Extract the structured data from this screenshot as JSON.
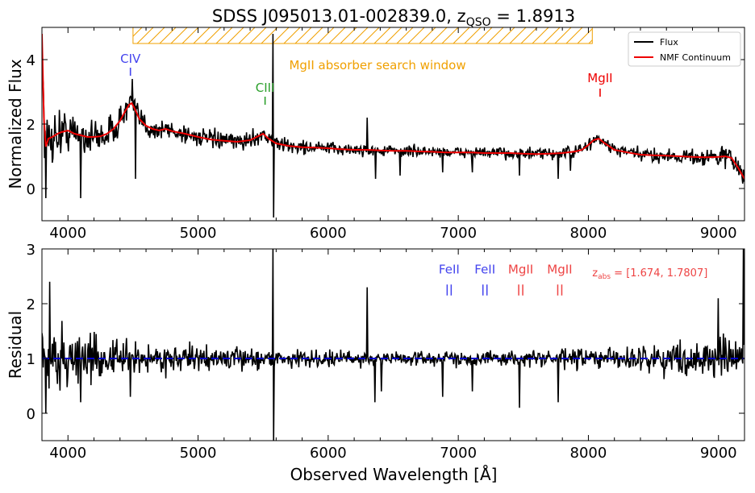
{
  "title": {
    "prefix": "SDSS J095013.01-002839.0,",
    "z_symbol": "z",
    "z_subscript": "QSO",
    "z_value": " = 1.8913"
  },
  "colors": {
    "flux": "#000000",
    "continuum": "#ee0000",
    "window": "#f0a000",
    "civ": "#4444ee",
    "ciii": "#2ca02c",
    "mgii_emission": "#ee0000",
    "feii": "#4444ee",
    "mgii_abs": "#ee4444",
    "unity": "#0000cc"
  },
  "chart_data": [
    {
      "type": "line",
      "title": "",
      "xlabel": "",
      "ylabel": "Normalized Flux",
      "xlim": [
        3800,
        9200
      ],
      "ylim": [
        -1,
        5
      ],
      "xticks": [
        4000,
        5000,
        6000,
        7000,
        8000,
        9000
      ],
      "yticks": [
        0,
        2,
        4
      ],
      "grid": false,
      "legend": {
        "placement": "top-right",
        "entries": [
          "Flux",
          "NMF Continuum"
        ]
      },
      "continuum_points": [
        [
          3800,
          4.8
        ],
        [
          3815,
          2.2
        ],
        [
          3830,
          1.3
        ],
        [
          3850,
          1.55
        ],
        [
          3880,
          1.6
        ],
        [
          3920,
          1.7
        ],
        [
          3950,
          1.75
        ],
        [
          4000,
          1.8
        ],
        [
          4050,
          1.7
        ],
        [
          4100,
          1.65
        ],
        [
          4150,
          1.6
        ],
        [
          4200,
          1.6
        ],
        [
          4250,
          1.62
        ],
        [
          4300,
          1.7
        ],
        [
          4350,
          1.85
        ],
        [
          4400,
          2.1
        ],
        [
          4440,
          2.4
        ],
        [
          4470,
          2.6
        ],
        [
          4490,
          2.65
        ],
        [
          4510,
          2.5
        ],
        [
          4550,
          2.15
        ],
        [
          4600,
          1.95
        ],
        [
          4650,
          1.85
        ],
        [
          4700,
          1.8
        ],
        [
          4750,
          1.85
        ],
        [
          4800,
          1.78
        ],
        [
          4900,
          1.7
        ],
        [
          5000,
          1.6
        ],
        [
          5100,
          1.52
        ],
        [
          5200,
          1.48
        ],
        [
          5300,
          1.45
        ],
        [
          5400,
          1.5
        ],
        [
          5460,
          1.62
        ],
        [
          5500,
          1.7
        ],
        [
          5540,
          1.55
        ],
        [
          5600,
          1.4
        ],
        [
          5700,
          1.32
        ],
        [
          5800,
          1.28
        ],
        [
          5900,
          1.27
        ],
        [
          6000,
          1.25
        ],
        [
          6100,
          1.22
        ],
        [
          6200,
          1.2
        ],
        [
          6300,
          1.2
        ],
        [
          6400,
          1.18
        ],
        [
          6500,
          1.17
        ],
        [
          6600,
          1.17
        ],
        [
          6700,
          1.15
        ],
        [
          6800,
          1.14
        ],
        [
          6900,
          1.12
        ],
        [
          7000,
          1.12
        ],
        [
          7100,
          1.12
        ],
        [
          7200,
          1.1
        ],
        [
          7300,
          1.1
        ],
        [
          7400,
          1.1
        ],
        [
          7500,
          1.08
        ],
        [
          7600,
          1.07
        ],
        [
          7700,
          1.08
        ],
        [
          7800,
          1.1
        ],
        [
          7900,
          1.15
        ],
        [
          7950,
          1.2
        ],
        [
          8000,
          1.35
        ],
        [
          8040,
          1.5
        ],
        [
          8080,
          1.55
        ],
        [
          8120,
          1.42
        ],
        [
          8200,
          1.2
        ],
        [
          8300,
          1.12
        ],
        [
          8400,
          1.05
        ],
        [
          8500,
          1.03
        ],
        [
          8600,
          1.02
        ],
        [
          8700,
          1.0
        ],
        [
          8800,
          0.98
        ],
        [
          8900,
          0.97
        ],
        [
          9000,
          0.98
        ],
        [
          9050,
          1.0
        ],
        [
          9100,
          0.95
        ],
        [
          9150,
          0.65
        ],
        [
          9200,
          0.3
        ]
      ],
      "flux_noise": [
        [
          3800,
          0.7
        ],
        [
          4000,
          0.45
        ],
        [
          4500,
          0.28
        ],
        [
          5000,
          0.2
        ],
        [
          6000,
          0.14
        ],
        [
          7000,
          0.12
        ],
        [
          7500,
          0.13
        ],
        [
          8000,
          0.14
        ],
        [
          8500,
          0.15
        ],
        [
          9000,
          0.2
        ],
        [
          9200,
          0.3
        ]
      ],
      "flux_features": [
        {
          "x": 3830,
          "y": -0.3
        },
        {
          "x": 4100,
          "y": -0.3
        },
        {
          "x": 4495,
          "y": 3.4
        },
        {
          "x": 4520,
          "y": 0.3
        },
        {
          "x": 5578,
          "y": 4.8
        },
        {
          "x": 5580,
          "y": -0.9
        },
        {
          "x": 6300,
          "y": 2.2
        },
        {
          "x": 6365,
          "y": 0.3
        },
        {
          "x": 6555,
          "y": 0.4
        },
        {
          "x": 6880,
          "y": 0.5
        },
        {
          "x": 7110,
          "y": 0.5
        },
        {
          "x": 7470,
          "y": 0.4
        },
        {
          "x": 7770,
          "y": 0.3
        },
        {
          "x": 7860,
          "y": 0.55
        }
      ],
      "search_window": {
        "x": [
          4500,
          8030
        ],
        "y": [
          4.5,
          5.0
        ],
        "label": "MgII absorber search window"
      },
      "line_markers": [
        {
          "label": "CIV",
          "x": 4480,
          "tick_y": [
            3.5,
            3.75
          ],
          "label_y": 3.9
        },
        {
          "label": "CIII",
          "x": 5515,
          "tick_y": [
            2.6,
            2.85
          ],
          "label_y": 3.0
        },
        {
          "label": "MgII",
          "x": 8090,
          "tick_y": [
            2.85,
            3.1
          ],
          "label_y": 3.3
        }
      ]
    },
    {
      "type": "line",
      "title": "",
      "xlabel": "Observed Wavelength [Å]",
      "ylabel": "Residual",
      "xlim": [
        3800,
        9200
      ],
      "ylim": [
        -0.5,
        3
      ],
      "xticks": [
        4000,
        5000,
        6000,
        7000,
        8000,
        9000
      ],
      "yticks": [
        0,
        1,
        2,
        3
      ],
      "grid": false,
      "reference_line": 1.0,
      "residual_noise": [
        [
          3800,
          0.55
        ],
        [
          4000,
          0.35
        ],
        [
          4500,
          0.2
        ],
        [
          5000,
          0.15
        ],
        [
          6000,
          0.1
        ],
        [
          7000,
          0.09
        ],
        [
          7500,
          0.1
        ],
        [
          8000,
          0.13
        ],
        [
          8500,
          0.17
        ],
        [
          9000,
          0.25
        ],
        [
          9200,
          0.35
        ]
      ],
      "residual_features": [
        {
          "x": 3830,
          "y": 0.0
        },
        {
          "x": 3860,
          "y": 2.4
        },
        {
          "x": 4100,
          "y": 0.2
        },
        {
          "x": 4480,
          "y": 0.3
        },
        {
          "x": 5578,
          "y": 3.0
        },
        {
          "x": 5580,
          "y": -0.5
        },
        {
          "x": 6300,
          "y": 2.3
        },
        {
          "x": 6360,
          "y": 0.2
        },
        {
          "x": 6410,
          "y": 0.4
        },
        {
          "x": 6880,
          "y": 0.3
        },
        {
          "x": 7110,
          "y": 0.4
        },
        {
          "x": 7470,
          "y": 0.1
        },
        {
          "x": 7770,
          "y": 0.2
        },
        {
          "x": 9000,
          "y": 2.1
        },
        {
          "x": 9190,
          "y": 3.0
        }
      ],
      "absorber_markers": [
        {
          "label": "FeII",
          "x": 6930,
          "color_key": "feii"
        },
        {
          "label": "FeII",
          "x": 7205,
          "color_key": "feii"
        },
        {
          "label": "MgII",
          "x": 7480,
          "color_key": "mgii_abs"
        },
        {
          "label": "MgII",
          "x": 7780,
          "color_key": "mgii_abs"
        }
      ],
      "absorber_tick_y": [
        2.15,
        2.35
      ],
      "absorber_label_y": 2.55,
      "zabs": {
        "symbol": "z",
        "subscript": "abs",
        "value": " = [1.674, 1.7807]",
        "x": 8030,
        "y": 2.5
      }
    }
  ]
}
